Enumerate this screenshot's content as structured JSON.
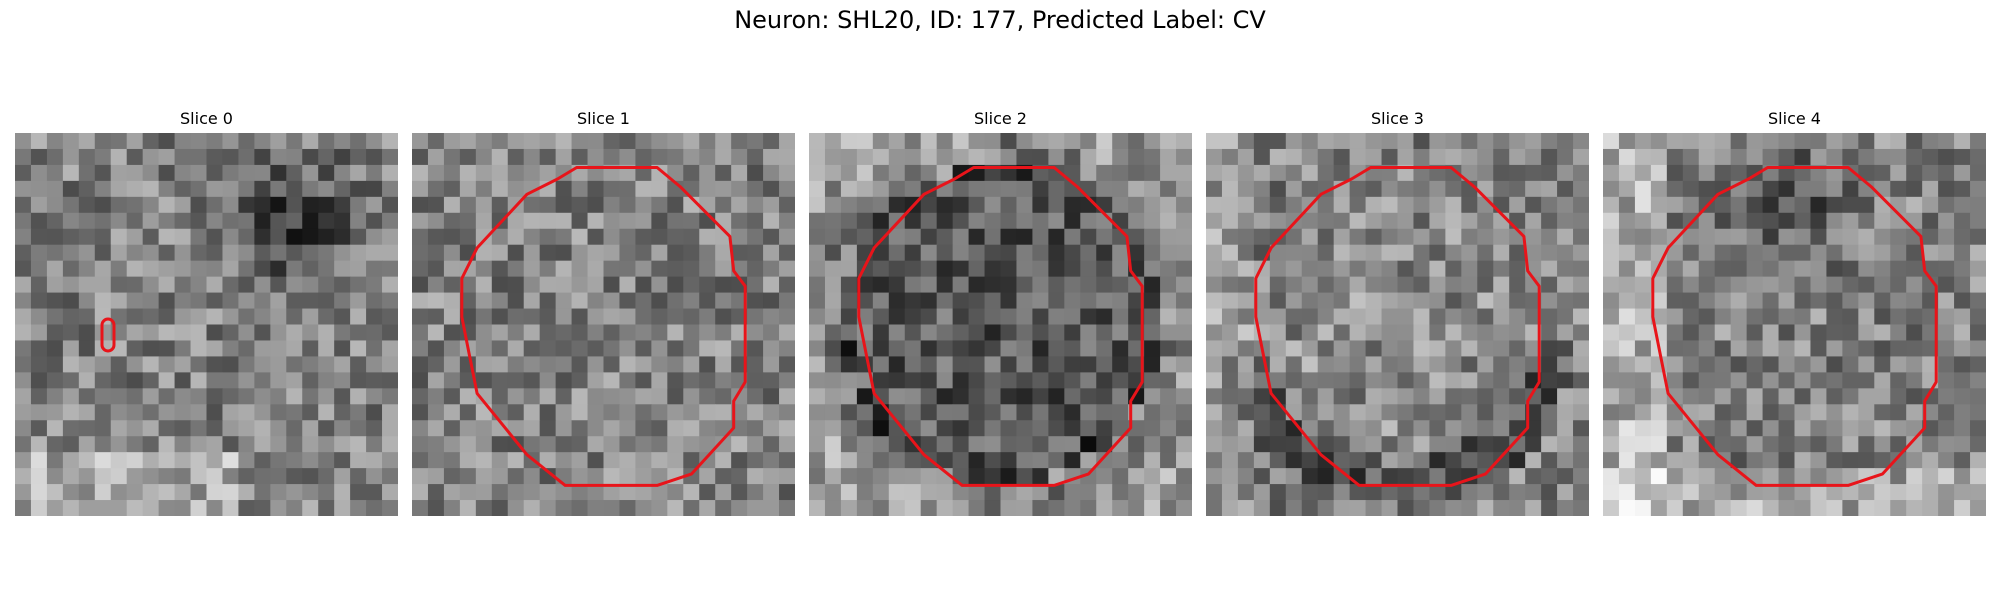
{
  "figure": {
    "title": "Neuron: SHL20, ID: 177, Predicted Label: CV"
  },
  "slices": [
    {
      "label": "Slice 0",
      "dark_region": "top-right",
      "contour": "small-oval"
    },
    {
      "label": "Slice 1",
      "dark_region": "none",
      "contour": "large-polygon"
    },
    {
      "label": "Slice 2",
      "dark_region": "center",
      "contour": "large-polygon"
    },
    {
      "label": "Slice 3",
      "dark_region": "bottom-ring",
      "contour": "large-polygon"
    },
    {
      "label": "Slice 4",
      "dark_region": "top-center",
      "contour": "large-polygon"
    }
  ],
  "colors": {
    "contour": "#e8141a",
    "background": "#ffffff"
  }
}
